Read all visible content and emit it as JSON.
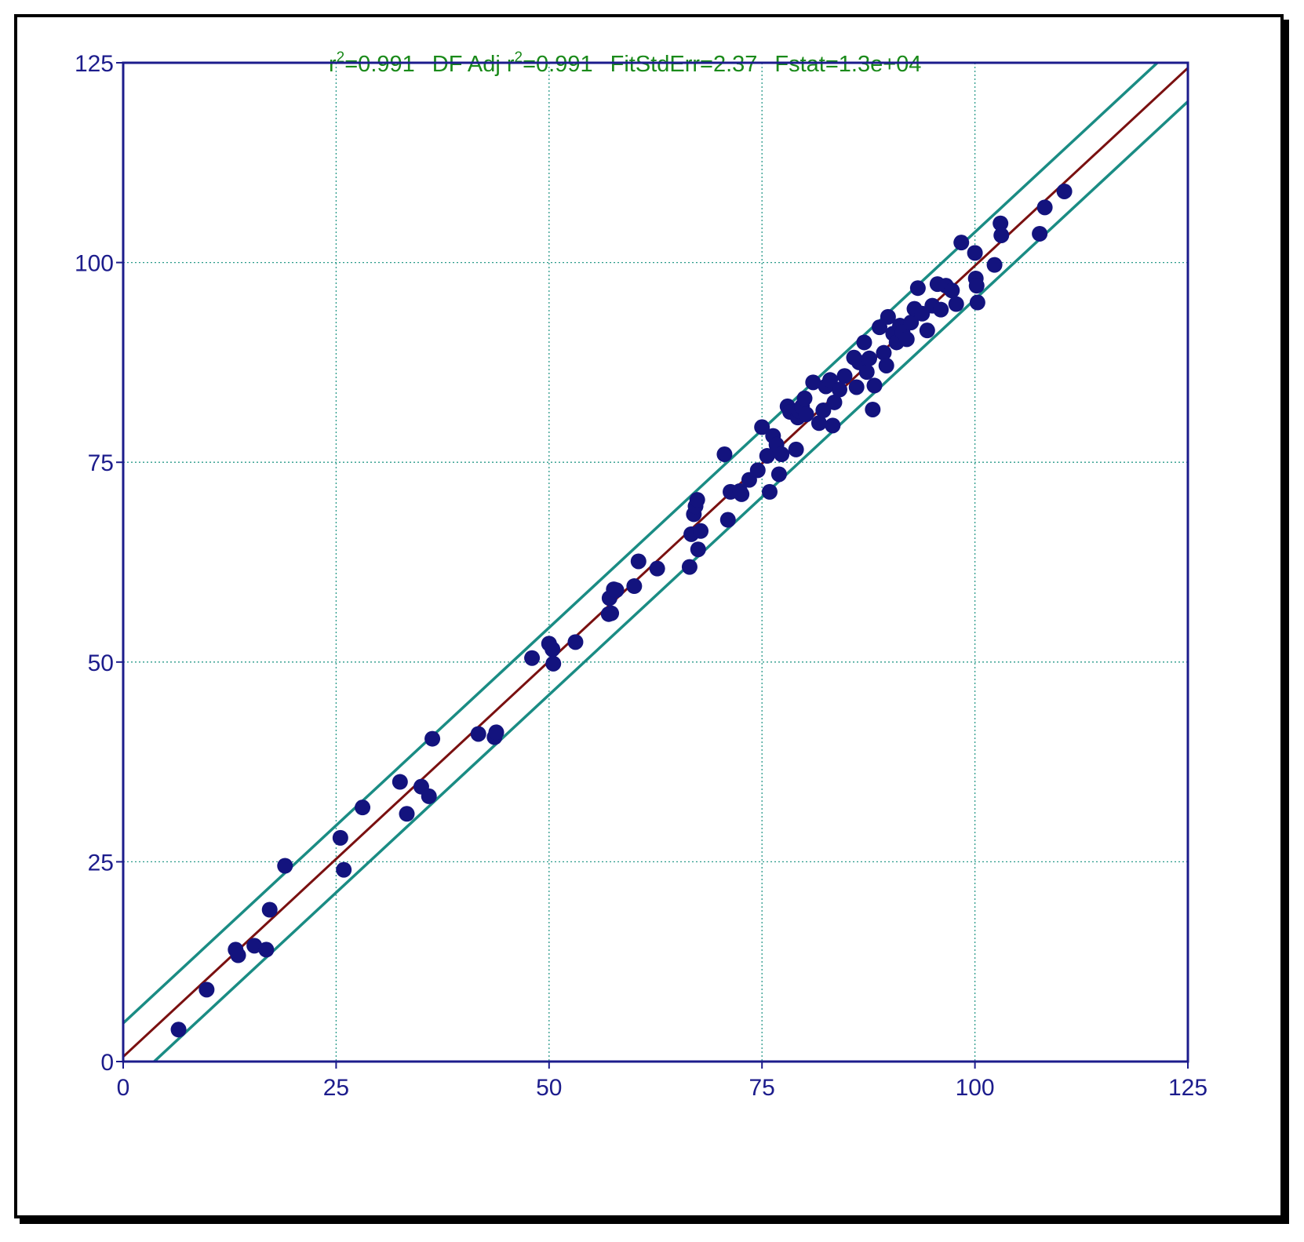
{
  "header": {
    "r2_label": "r",
    "r2_sup": "2",
    "r2_value": "=0.991",
    "adj_label": "DF Adj r",
    "adj_sup": "2",
    "adj_value": "=0.991",
    "fit_std_err": "FitStdErr=2.37",
    "fstat": "Fstat=1.3e+04"
  },
  "colors": {
    "points": "#13137e",
    "fit_line": "#7a1010",
    "bands": "#1a8c84",
    "axis": "#1c1c8c",
    "grid": "#2a9a8a",
    "stats_text": "#1a8a1a"
  },
  "chart_data": {
    "type": "scatter",
    "title": "",
    "xlabel": "",
    "ylabel": "",
    "xlim": [
      0,
      125
    ],
    "ylim": [
      0,
      125
    ],
    "x_ticks": [
      0,
      25,
      50,
      75,
      100,
      125
    ],
    "y_ticks": [
      0,
      25,
      50,
      75,
      100,
      125
    ],
    "x_tick_labels": [
      "0",
      "25",
      "50",
      "75",
      "100",
      "125"
    ],
    "y_tick_labels": [
      "0",
      "25",
      "50",
      "75",
      "100",
      "125"
    ],
    "grid": true,
    "fit_line": {
      "slope": 0.99,
      "intercept": 0.6
    },
    "prediction_band_halfwidth": 4.2,
    "points": [
      [
        6.5,
        4
      ],
      [
        9.8,
        9
      ],
      [
        13.2,
        14
      ],
      [
        13.5,
        13.3
      ],
      [
        15.4,
        14.5
      ],
      [
        16.8,
        14
      ],
      [
        17.2,
        19
      ],
      [
        19,
        24.5
      ],
      [
        25.5,
        28
      ],
      [
        25.9,
        24
      ],
      [
        28.1,
        31.8
      ],
      [
        32.5,
        35
      ],
      [
        33.3,
        31
      ],
      [
        35,
        34.4
      ],
      [
        35.9,
        33.2
      ],
      [
        36.3,
        40.4
      ],
      [
        41.7,
        41
      ],
      [
        43.6,
        40.6
      ],
      [
        43.8,
        41.2
      ],
      [
        48,
        50.5
      ],
      [
        50,
        52.3
      ],
      [
        50.4,
        51.6
      ],
      [
        50.5,
        49.8
      ],
      [
        53.1,
        52.5
      ],
      [
        57,
        56
      ],
      [
        57.1,
        58
      ],
      [
        57.3,
        56.1
      ],
      [
        57.6,
        59.1
      ],
      [
        57.9,
        59
      ],
      [
        60,
        59.5
      ],
      [
        60.5,
        62.6
      ],
      [
        62.7,
        61.7
      ],
      [
        66.5,
        61.9
      ],
      [
        66.7,
        66
      ],
      [
        67,
        68.5
      ],
      [
        67.2,
        69.5
      ],
      [
        67.4,
        70.3
      ],
      [
        67.5,
        64.1
      ],
      [
        67.8,
        66.4
      ],
      [
        70.6,
        76
      ],
      [
        71,
        67.8
      ],
      [
        71.3,
        71.3
      ],
      [
        72.4,
        71.4
      ],
      [
        72.6,
        71
      ],
      [
        73.5,
        72.8
      ],
      [
        74.5,
        74
      ],
      [
        75,
        79.4
      ],
      [
        75.6,
        75.8
      ],
      [
        75.9,
        71.3
      ],
      [
        76.3,
        78.3
      ],
      [
        76.7,
        77.2
      ],
      [
        77,
        73.5
      ],
      [
        77.3,
        76
      ],
      [
        78,
        82
      ],
      [
        78.3,
        81.3
      ],
      [
        79,
        76.6
      ],
      [
        79.2,
        80.6
      ],
      [
        79.4,
        81.4
      ],
      [
        79.7,
        82
      ],
      [
        80,
        83
      ],
      [
        80.2,
        81
      ],
      [
        81,
        85
      ],
      [
        81.7,
        79.9
      ],
      [
        82.2,
        81.5
      ],
      [
        82.5,
        84.5
      ],
      [
        83,
        85.3
      ],
      [
        83.3,
        79.6
      ],
      [
        83.5,
        82.5
      ],
      [
        84.1,
        84.1
      ],
      [
        84.7,
        85.8
      ],
      [
        85.8,
        88.1
      ],
      [
        86.1,
        84.4
      ],
      [
        86.4,
        87.5
      ],
      [
        87,
        90
      ],
      [
        87.3,
        86.3
      ],
      [
        87.6,
        88
      ],
      [
        88,
        81.6
      ],
      [
        88.2,
        84.6
      ],
      [
        88.8,
        91.9
      ],
      [
        89.3,
        88.7
      ],
      [
        89.6,
        87.1
      ],
      [
        89.8,
        93.2
      ],
      [
        90.4,
        91.1
      ],
      [
        90.8,
        90
      ],
      [
        91.2,
        92.1
      ],
      [
        91.5,
        91.3
      ],
      [
        92,
        90.4
      ],
      [
        92.5,
        92.5
      ],
      [
        92.9,
        94.2
      ],
      [
        93.3,
        96.8
      ],
      [
        93.8,
        93.6
      ],
      [
        94.4,
        91.5
      ],
      [
        95,
        94.6
      ],
      [
        95.6,
        97.3
      ],
      [
        96,
        94.1
      ],
      [
        96.6,
        97.1
      ],
      [
        97.3,
        96.5
      ],
      [
        97.8,
        94.8
      ],
      [
        98.4,
        102.5
      ],
      [
        100,
        101.2
      ],
      [
        100.1,
        98
      ],
      [
        100.2,
        97.1
      ],
      [
        100.3,
        95
      ],
      [
        102.3,
        99.7
      ],
      [
        103,
        104.9
      ],
      [
        103.1,
        103.4
      ],
      [
        107.6,
        103.6
      ],
      [
        108.2,
        106.9
      ],
      [
        110.5,
        108.9
      ]
    ]
  }
}
